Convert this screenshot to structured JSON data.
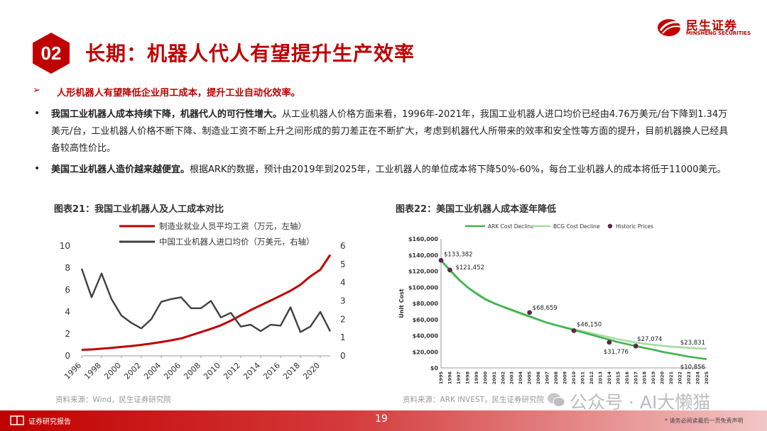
{
  "header": {
    "section_number": "02",
    "title": "长期：机器人代人有望提升生产效率",
    "logo_cn": "民生证券",
    "logo_en": "MINSHENG SECURITIES"
  },
  "bullets": {
    "b0": "人形机器人有望降低企业用工成本，提升工业自动化效率。",
    "b1_bold": "我国工业机器人成本持续下降，机器代人的可行性增大。",
    "b1_text": "从工业机器人价格方面来看，1996年-2021年，我国工业机器人进口均价已经由4.76万美元/台下降到1.34万美元/台，工业机器人价格不断下降、制造业工资不断上升之间形成的剪刀差正在不断扩大，考虑到机器代人所带来的效率和安全性等方面的提升，目前机器换人已经具备较高性价比。",
    "b2_bold": "美国工业机器人造价越来越便宜。",
    "b2_text": "根据ARK的数据，预计由2019年到2025年，工业机器人的单位成本将下降50%-60%，每台工业机器人的成本将低于11000美元。"
  },
  "left_chart": {
    "title": "图表21：我国工业机器人及人工成本对比",
    "source": "资料来源：Wind，民生证券研究院"
  },
  "right_chart": {
    "title": "图表22：美国工业机器人成本逐年降低",
    "source": "资料来源：ARK INVEST，民生证券研究院"
  },
  "footer": {
    "left": "证券研究报告",
    "page": "19",
    "right": "* 请务必阅读最后一页免责声明",
    "watermark": "公众号 · AI大懒猫"
  },
  "colors": {
    "brand_red": "#c00000",
    "ark_green": "#3cb44b",
    "bcg_green": "#a8dba2",
    "hist_dot": "#5a2a4a",
    "robot_gray": "#404040"
  },
  "chart_data": [
    {
      "type": "line",
      "x": [
        1996,
        1997,
        1998,
        1999,
        2000,
        2001,
        2002,
        2003,
        2004,
        2005,
        2006,
        2007,
        2008,
        2009,
        2010,
        2011,
        2012,
        2013,
        2014,
        2015,
        2016,
        2017,
        2018,
        2019,
        2020,
        2021
      ],
      "x_ticks": [
        "1996",
        "1998",
        "2000",
        "2002",
        "2004",
        "2006",
        "2008",
        "2010",
        "2012",
        "2014",
        "2016",
        "2018",
        "2020"
      ],
      "series": [
        {
          "name": "制造业就业人员平均工资（万元，左轴）",
          "axis": "left",
          "color": "#c00000",
          "values": [
            0.55,
            0.58,
            0.65,
            0.72,
            0.81,
            0.9,
            1.0,
            1.12,
            1.26,
            1.41,
            1.59,
            1.87,
            2.17,
            2.46,
            2.78,
            3.2,
            3.69,
            4.17,
            4.6,
            5.03,
            5.47,
            5.92,
            6.48,
            7.23,
            7.84,
            9.2
          ]
        },
        {
          "name": "中国工业机器人进口均价（万美元，右轴）",
          "axis": "right",
          "color": "#404040",
          "values": [
            4.76,
            3.2,
            4.5,
            3.1,
            2.2,
            1.8,
            1.5,
            2.0,
            2.95,
            3.1,
            3.2,
            2.6,
            2.6,
            3.0,
            2.1,
            2.35,
            1.6,
            1.7,
            1.35,
            1.7,
            1.65,
            2.65,
            1.3,
            1.6,
            2.4,
            1.34
          ]
        }
      ],
      "ylim_left": [
        0,
        10
      ],
      "yticks_left": [
        "0",
        "2",
        "4",
        "6",
        "8",
        "10"
      ],
      "ylim_right": [
        0,
        6
      ],
      "yticks_right": [
        "0",
        "1",
        "2",
        "3",
        "4",
        "5",
        "6"
      ],
      "legend": "top"
    },
    {
      "type": "line",
      "x": [
        1995,
        1996,
        1997,
        1998,
        1999,
        2000,
        2001,
        2002,
        2003,
        2004,
        2005,
        2006,
        2007,
        2008,
        2009,
        2010,
        2011,
        2012,
        2013,
        2014,
        2015,
        2016,
        2017,
        2018,
        2019,
        2020,
        2021,
        2022,
        2023,
        2024,
        2025
      ],
      "x_ticks": [
        "1995",
        "1996",
        "1997",
        "1998",
        "1999",
        "2000",
        "2001",
        "2002",
        "2003",
        "2004",
        "2005",
        "2006",
        "2007",
        "2008",
        "2009",
        "2010",
        "2011",
        "2012",
        "2013",
        "2014",
        "2015",
        "2016",
        "2017",
        "2018",
        "2019",
        "2020",
        "2021",
        "2022",
        "2023",
        "2024",
        "2025"
      ],
      "series": [
        {
          "name": "ARK Cost Decline",
          "color": "#3cb44b",
          "values": [
            133382,
            121452,
            110000,
            100000,
            92000,
            85000,
            80000,
            76000,
            72000,
            68000,
            64000,
            60000,
            56000,
            53000,
            50000,
            47000,
            44000,
            41000,
            38000,
            35000,
            32000,
            29500,
            27000,
            24800,
            22500,
            20000,
            18000,
            16000,
            14000,
            12400,
            10856
          ]
        },
        {
          "name": "BCG Cost Decline",
          "color": "#a8dba2",
          "values": [
            133382,
            120000,
            109000,
            100000,
            93000,
            86000,
            80500,
            75500,
            71000,
            67000,
            63000,
            59500,
            56000,
            53000,
            50500,
            48000,
            45500,
            43000,
            40500,
            38000,
            35500,
            33500,
            31500,
            30000,
            28700,
            27500,
            26500,
            25600,
            24900,
            24300,
            23831
          ]
        },
        {
          "name": "Historic Prices",
          "color": "#5a2a4a",
          "kind": "points",
          "points": [
            [
              1995,
              133382
            ],
            [
              1996,
              121452
            ],
            [
              2005,
              68659
            ],
            [
              2010,
              46150
            ],
            [
              2014,
              31776
            ],
            [
              2017,
              27074
            ]
          ]
        }
      ],
      "labels": [
        {
          "x": 1995,
          "y": 133382,
          "text": "$133,382"
        },
        {
          "x": 1996,
          "y": 121452,
          "text": "$121,452"
        },
        {
          "x": 2005,
          "y": 68659,
          "text": "$68,659"
        },
        {
          "x": 2010,
          "y": 46150,
          "text": "$46,150"
        },
        {
          "x": 2014,
          "y": 31776,
          "text": "$31,776"
        },
        {
          "x": 2017,
          "y": 27074,
          "text": "$27,074"
        },
        {
          "x": 2025,
          "y": 23831,
          "text": "$23,831"
        },
        {
          "x": 2025,
          "y": 10856,
          "text": "$10,856"
        }
      ],
      "ylabel": "Unit Cost",
      "ylim": [
        0,
        160000
      ],
      "yticks": [
        "$0",
        "$20,000",
        "$40,000",
        "$60,000",
        "$80,000",
        "$100,000",
        "$120,000",
        "$140,000",
        "$160,000"
      ],
      "legend": "top"
    }
  ]
}
